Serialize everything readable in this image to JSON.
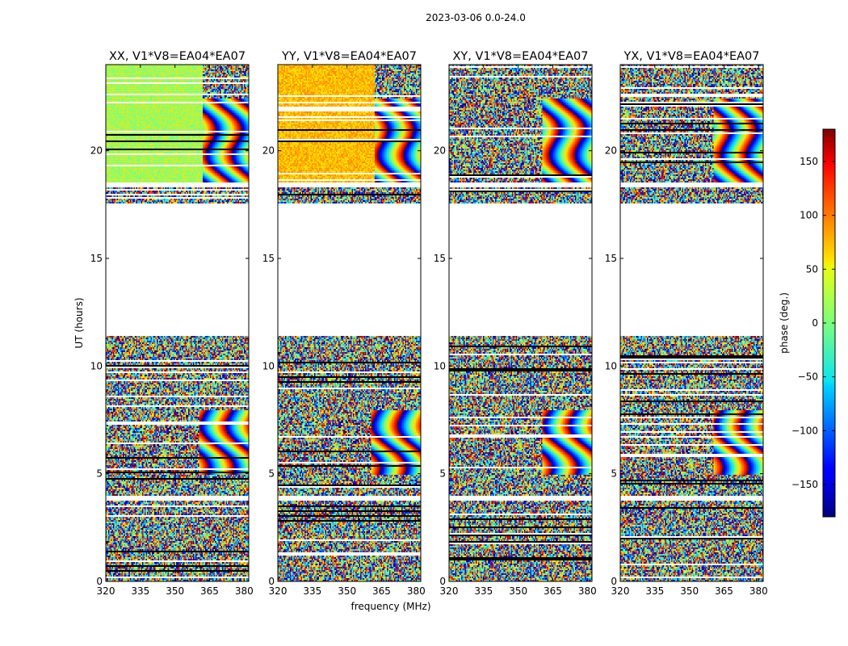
{
  "chart_data": {
    "type": "heatmap",
    "title": "2023-03-06 0.0-24.0",
    "xlabel": "frequency (MHz)",
    "ylabel": "UT (hours)",
    "xlim": [
      320,
      382
    ],
    "ylim": [
      0,
      24
    ],
    "xticks": [
      "320",
      "335",
      "350",
      "365",
      "380"
    ],
    "xtick_values": [
      320,
      335,
      350,
      365,
      380
    ],
    "yticks": [
      "0",
      "5",
      "10",
      "15",
      "20"
    ],
    "ytick_values": [
      0,
      5,
      10,
      15,
      20
    ],
    "panels": [
      {
        "title": "XX, V1*V8=EA04*EA07",
        "pol": "XX",
        "baseline": "V1*V8",
        "antennas": "EA04*EA07"
      },
      {
        "title": "YY, V1*V8=EA04*EA07",
        "pol": "YY",
        "baseline": "V1*V8",
        "antennas": "EA04*EA07"
      },
      {
        "title": "XY, V1*V8=EA04*EA07",
        "pol": "XY",
        "baseline": "V1*V8",
        "antennas": "EA04*EA07"
      },
      {
        "title": "YX, V1*V8=EA04*EA07",
        "pol": "YX",
        "baseline": "V1*V8",
        "antennas": "EA04*EA07"
      }
    ],
    "data_gaps_hours": [
      [
        11.4,
        17.6
      ],
      [
        18.3,
        18.6
      ],
      [
        3.8,
        4.0
      ]
    ],
    "colorbar": {
      "label": "phase (deg.)",
      "range": [
        -180,
        180
      ],
      "ticks": [
        "150",
        "100",
        "50",
        "0",
        "−50",
        "−100",
        "−150"
      ],
      "tick_values": [
        150,
        100,
        50,
        0,
        -50,
        -100,
        -150
      ],
      "colormap": "jet"
    }
  }
}
